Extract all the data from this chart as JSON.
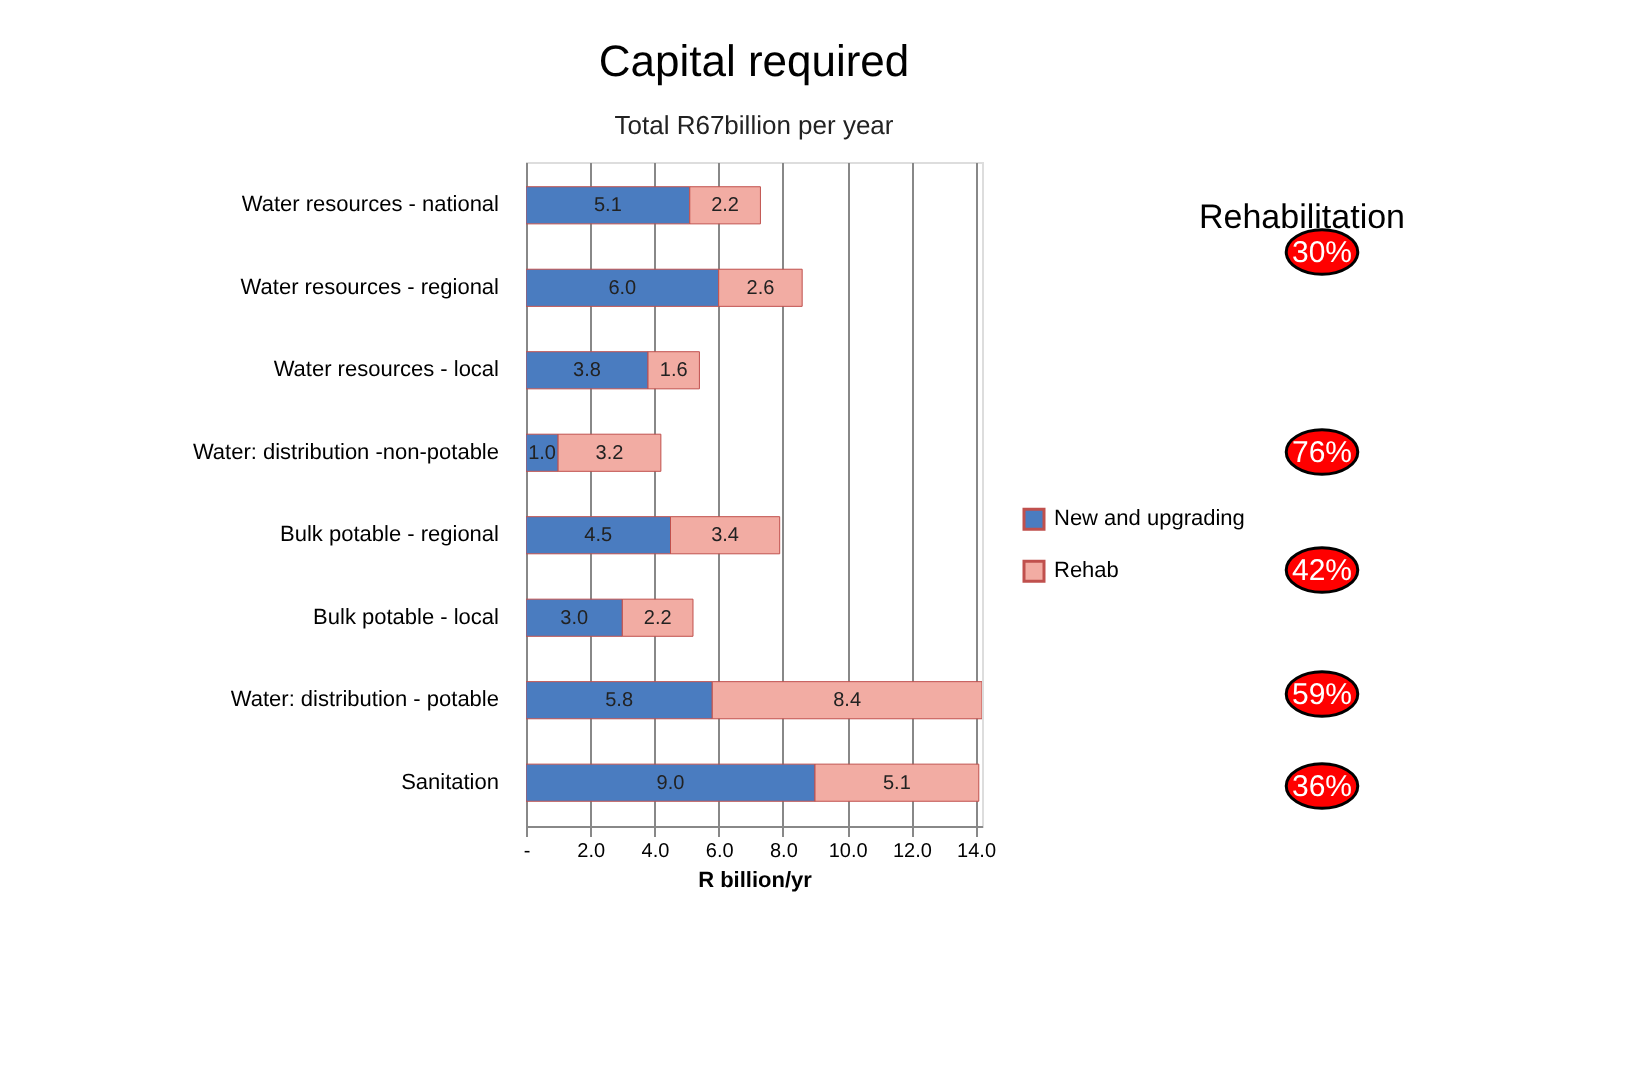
{
  "chart_data": {
    "type": "bar",
    "orientation": "horizontal",
    "stacked": true,
    "title": "Capital required",
    "subtitle": "Total R67billion per year",
    "xlabel": "R billion/yr",
    "categories": [
      "Water resources - national",
      "Water resources - regional",
      "Water resources - local",
      "Water: distribution -non-potable",
      "Bulk potable - regional",
      "Bulk potable - local",
      "Water: distribution - potable",
      "Sanitation"
    ],
    "series": [
      {
        "name": "New and upgrading",
        "color": "#4a7cc0",
        "values": [
          5.1,
          6.0,
          3.8,
          1.0,
          4.5,
          3.0,
          5.8,
          9.0
        ],
        "value_labels": [
          "5.1",
          "6.0",
          "3.8",
          "1.0",
          "4.5",
          "3.0",
          "5.8",
          "9.0"
        ]
      },
      {
        "name": "Rehab",
        "color": "#f2aca3",
        "values": [
          2.2,
          2.6,
          1.6,
          3.2,
          3.4,
          2.2,
          8.4,
          5.1
        ],
        "value_labels": [
          "2.2",
          "2.6",
          "1.6",
          "3.2",
          "3.4",
          "2.2",
          "8.4",
          "5.1"
        ]
      }
    ],
    "xlim": [
      0,
      14.2
    ],
    "xticks": [
      {
        "value": 0,
        "label": "-"
      },
      {
        "value": 2,
        "label": "2.0"
      },
      {
        "value": 4,
        "label": "4.0"
      },
      {
        "value": 6,
        "label": "6.0"
      },
      {
        "value": 8,
        "label": "8.0"
      },
      {
        "value": 10,
        "label": "10.0"
      },
      {
        "value": 12,
        "label": "12.0"
      },
      {
        "value": 14,
        "label": "14.0"
      }
    ],
    "grid": "x",
    "legend": "right",
    "annotations": [
      "Rehabilitation",
      "30%",
      "76%",
      "42%",
      "59%",
      "36%"
    ]
  }
}
